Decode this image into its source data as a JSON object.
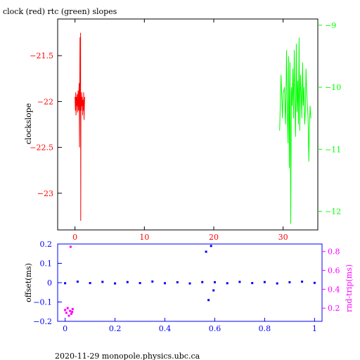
{
  "title": "clock (red) rtc (green) slopes",
  "footer": "2020-11-29  monopole.physics.ubc.ca",
  "colors": {
    "red": "#ff0000",
    "green": "#00ff00",
    "blue": "#0000ff",
    "magenta": "#ff00ff",
    "frame": "#000000"
  },
  "chart_data": [
    {
      "type": "line",
      "title": "clock (red) rtc (green) slopes",
      "ylabel": "clockslope",
      "xlim": [
        -2.5,
        35
      ],
      "ylim_left": [
        -23.4,
        -21.1
      ],
      "ylim_right": [
        -12.3,
        -8.9
      ],
      "x_ticks": [
        0,
        10,
        20,
        30
      ],
      "y_left_ticks": [
        -21.5,
        -22,
        -22.5,
        -23
      ],
      "y_right_ticks": [
        -9,
        -10,
        -11,
        -12
      ],
      "series": [
        {
          "name": "clock",
          "color": "red",
          "axis": "left",
          "x": [
            0.0,
            0.05,
            0.1,
            0.15,
            0.2,
            0.25,
            0.3,
            0.35,
            0.4,
            0.45,
            0.5,
            0.55,
            0.6,
            0.65,
            0.7,
            0.72,
            0.75,
            0.8,
            0.82,
            0.85,
            0.88,
            0.9,
            0.95,
            1.0,
            1.05,
            1.1,
            1.15,
            1.2,
            1.25,
            1.3,
            1.35,
            1.4
          ],
          "values": [
            -21.95,
            -22.1,
            -21.9,
            -22.15,
            -21.95,
            -22.05,
            -21.92,
            -22.12,
            -22.0,
            -21.88,
            -22.1,
            -21.95,
            -21.8,
            -22.5,
            -21.6,
            -21.3,
            -22.1,
            -21.25,
            -23.3,
            -21.95,
            -22.0,
            -22.1,
            -21.9,
            -22.05,
            -21.95,
            -22.15,
            -21.98,
            -22.1,
            -21.9,
            -22.2,
            -22.05,
            -21.95
          ]
        },
        {
          "name": "rtc",
          "color": "green",
          "axis": "right",
          "x": [
            29.5,
            29.7,
            29.9,
            30.0,
            30.2,
            30.35,
            30.5,
            30.6,
            30.7,
            30.8,
            30.9,
            31.0,
            31.1,
            31.2,
            31.3,
            31.4,
            31.5,
            31.6,
            31.7,
            31.8,
            31.9,
            32.0,
            32.1,
            32.2,
            32.3,
            32.4,
            32.5,
            32.6,
            32.7,
            32.8,
            32.9,
            33.0,
            33.1,
            33.2,
            33.3,
            33.4,
            33.5,
            33.6,
            33.7,
            33.8,
            33.9,
            34.0
          ],
          "values": [
            -10.7,
            -9.8,
            -10.5,
            -10.1,
            -10.0,
            -10.6,
            -9.4,
            -10.4,
            -10.9,
            -9.5,
            -11.3,
            -9.6,
            -12.2,
            -10.0,
            -10.3,
            -9.7,
            -10.5,
            -9.4,
            -10.2,
            -10.8,
            -9.3,
            -10.4,
            -9.9,
            -10.6,
            -9.2,
            -10.7,
            -9.8,
            -10.1,
            -10.5,
            -9.6,
            -10.3,
            -10.0,
            -10.6,
            -10.4,
            -9.7,
            -10.1,
            -10.3,
            -10.5,
            -11.2,
            -10.6,
            -10.3,
            -10.5
          ]
        }
      ]
    },
    {
      "type": "scatter",
      "ylabel": "offset(ms)",
      "y2label": "rnd-trip(ms)",
      "xlim": [
        -0.03,
        1.03
      ],
      "ylim_left": [
        -0.2,
        0.2
      ],
      "ylim_right": [
        0.06,
        0.88
      ],
      "x_ticks": [
        0,
        0.2,
        0.4,
        0.6,
        0.8,
        1
      ],
      "y_left_ticks": [
        0.2,
        0.1,
        0,
        -0.1,
        -0.2
      ],
      "y_right_ticks": [
        0.8,
        0.6,
        0.4,
        0.2
      ],
      "series": [
        {
          "name": "offset",
          "color": "blue",
          "axis": "left",
          "x": [
            0.0,
            0.05,
            0.1,
            0.15,
            0.2,
            0.25,
            0.3,
            0.35,
            0.4,
            0.45,
            0.5,
            0.55,
            0.565,
            0.575,
            0.585,
            0.595,
            0.6,
            0.65,
            0.7,
            0.75,
            0.8,
            0.85,
            0.9,
            0.95,
            1.0
          ],
          "values": [
            -0.003,
            0.005,
            -0.002,
            0.004,
            -0.004,
            0.003,
            -0.002,
            0.006,
            -0.003,
            0.002,
            -0.004,
            0.003,
            0.16,
            -0.09,
            0.19,
            -0.04,
            0.002,
            -0.003,
            0.004,
            -0.002,
            0.003,
            -0.004,
            0.002,
            0.005,
            -0.001
          ]
        },
        {
          "name": "rnd-trip",
          "color": "magenta",
          "axis": "right",
          "x": [
            0.0,
            0.005,
            0.01,
            0.015,
            0.02,
            0.022,
            0.025,
            0.028,
            0.03
          ],
          "values": [
            0.18,
            0.15,
            0.2,
            0.12,
            0.17,
            0.85,
            0.14,
            0.16,
            0.19
          ]
        }
      ]
    }
  ]
}
